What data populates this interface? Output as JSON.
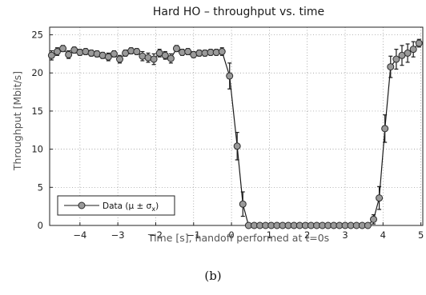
{
  "caption": "(b)",
  "chart_data": {
    "type": "line",
    "title": "Hard HO – throughput vs. time",
    "xlabel": "Time [s], handoff performed at t=0s",
    "ylabel": "Throughput [Mbit/s]",
    "xlim": [
      -4.8,
      5.05
    ],
    "ylim": [
      0,
      26
    ],
    "xticks": [
      -4,
      -3,
      -2,
      -1,
      0,
      1,
      2,
      3,
      4,
      5
    ],
    "yticks": [
      0,
      5,
      10,
      15,
      20,
      25
    ],
    "xtick_labels": [
      "−4",
      "−3",
      "−2",
      "−1",
      "0",
      "1",
      "2",
      "3",
      "4",
      "5"
    ],
    "ytick_labels": [
      "0",
      "5",
      "10",
      "15",
      "20",
      "25"
    ],
    "grid": true,
    "legend": {
      "position": "lower-left",
      "entries": [
        {
          "label_main": "Data (μ ± σ",
          "label_sub": "x",
          "label_end": ")"
        }
      ]
    },
    "colors": {
      "line": "#1a1a1a",
      "marker_fill": "#9a9a9a",
      "marker_edge": "#2a2a2a",
      "grid": "#8c8c8c"
    },
    "series": [
      {
        "name": "Data (μ ± σx)",
        "x": [
          -4.75,
          -4.6,
          -4.45,
          -4.3,
          -4.15,
          -4.0,
          -3.85,
          -3.7,
          -3.55,
          -3.4,
          -3.25,
          -3.1,
          -2.95,
          -2.8,
          -2.65,
          -2.5,
          -2.35,
          -2.2,
          -2.05,
          -1.9,
          -1.75,
          -1.6,
          -1.45,
          -1.3,
          -1.15,
          -1.0,
          -0.85,
          -0.7,
          -0.55,
          -0.4,
          -0.25,
          -0.05,
          0.15,
          0.3,
          0.45,
          0.6,
          0.75,
          0.9,
          1.05,
          1.2,
          1.35,
          1.5,
          1.65,
          1.8,
          1.95,
          2.1,
          2.25,
          2.4,
          2.55,
          2.7,
          2.85,
          3.0,
          3.15,
          3.3,
          3.45,
          3.6,
          3.75,
          3.9,
          4.05,
          4.2,
          4.35,
          4.5,
          4.65,
          4.8,
          4.95
        ],
        "y": [
          22.3,
          22.8,
          23.2,
          22.4,
          23.0,
          22.7,
          22.8,
          22.6,
          22.5,
          22.3,
          22.1,
          22.5,
          21.8,
          22.6,
          22.9,
          22.8,
          22.2,
          22.0,
          21.8,
          22.6,
          22.3,
          21.9,
          23.2,
          22.7,
          22.8,
          22.4,
          22.6,
          22.6,
          22.7,
          22.7,
          22.8,
          19.6,
          10.4,
          2.8,
          0.0,
          0.0,
          0.0,
          0.0,
          0.0,
          0.0,
          0.0,
          0.0,
          0.0,
          0.0,
          0.0,
          0.0,
          0.0,
          0.0,
          0.0,
          0.0,
          0.0,
          0.0,
          0.0,
          0.0,
          0.0,
          0.0,
          0.8,
          3.6,
          12.7,
          20.8,
          21.8,
          22.3,
          22.6,
          23.1,
          23.9
        ],
        "error": [
          0.6,
          0.5,
          0.4,
          0.5,
          0.4,
          0.4,
          0.4,
          0.4,
          0.4,
          0.4,
          0.5,
          0.4,
          0.5,
          0.4,
          0.4,
          0.4,
          0.6,
          0.6,
          0.7,
          0.5,
          0.5,
          0.6,
          0.4,
          0.4,
          0.4,
          0.4,
          0.4,
          0.4,
          0.4,
          0.4,
          0.5,
          1.7,
          1.8,
          1.6,
          0,
          0,
          0,
          0,
          0,
          0,
          0,
          0,
          0,
          0,
          0,
          0,
          0,
          0,
          0,
          0,
          0,
          0,
          0,
          0,
          0,
          0,
          0.6,
          1.5,
          1.8,
          1.4,
          1.3,
          1.3,
          1.2,
          1.0,
          0.5
        ]
      }
    ]
  }
}
